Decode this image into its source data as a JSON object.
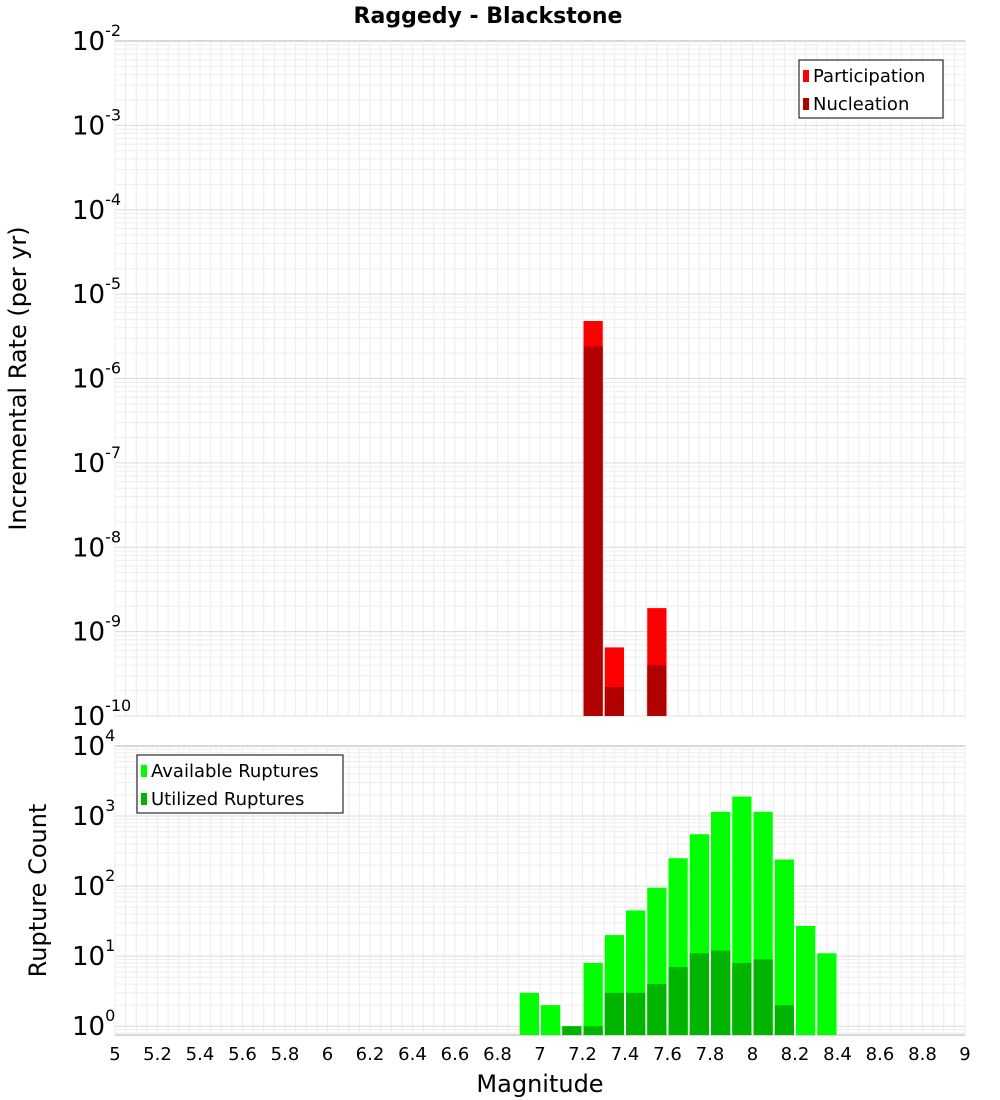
{
  "chart_data": [
    {
      "type": "bar",
      "title": "Raggedy - Blackstone",
      "xlabel": "",
      "ylabel": "Incremental Rate (per yr)",
      "yscale": "log",
      "ylim": [
        1e-10,
        0.01
      ],
      "xlim": [
        5,
        9
      ],
      "bar_width": 0.1,
      "grid": true,
      "legend_position": "top-right",
      "y_ticks": [
        {
          "base": "10",
          "exp": "-10",
          "value": 1e-10
        },
        {
          "base": "10",
          "exp": "-9",
          "value": 1e-09
        },
        {
          "base": "10",
          "exp": "-8",
          "value": 1e-08
        },
        {
          "base": "10",
          "exp": "-7",
          "value": 1e-07
        },
        {
          "base": "10",
          "exp": "-6",
          "value": 1e-06
        },
        {
          "base": "10",
          "exp": "-5",
          "value": 1e-05
        },
        {
          "base": "10",
          "exp": "-4",
          "value": 0.0001
        },
        {
          "base": "10",
          "exp": "-3",
          "value": 0.001
        },
        {
          "base": "10",
          "exp": "-2",
          "value": 0.01
        }
      ],
      "series": [
        {
          "name": "Participation",
          "color": "#ff0000",
          "points": [
            {
              "x": 7.25,
              "y": 4.8e-06
            },
            {
              "x": 7.35,
              "y": 6.5e-10
            },
            {
              "x": 7.55,
              "y": 1.9e-09
            }
          ]
        },
        {
          "name": "Nucleation",
          "color": "#b00000",
          "points": [
            {
              "x": 7.25,
              "y": 2.4e-06
            },
            {
              "x": 7.35,
              "y": 2.2e-10
            },
            {
              "x": 7.55,
              "y": 4e-10
            }
          ]
        }
      ]
    },
    {
      "type": "bar",
      "title": "",
      "xlabel": "Magnitude",
      "ylabel": "Rupture Count",
      "yscale": "log",
      "ylim": [
        0.75,
        10000
      ],
      "xlim": [
        5,
        9
      ],
      "bar_width": 0.1,
      "grid": true,
      "legend_position": "top-left",
      "x_ticks": [
        "5",
        "5.2",
        "5.4",
        "5.6",
        "5.8",
        "6",
        "6.2",
        "6.4",
        "6.6",
        "6.8",
        "7",
        "7.2",
        "7.4",
        "7.6",
        "7.8",
        "8",
        "8.2",
        "8.4",
        "8.6",
        "8.8",
        "9"
      ],
      "y_ticks": [
        {
          "base": "10",
          "exp": "0",
          "value": 1
        },
        {
          "base": "10",
          "exp": "1",
          "value": 10
        },
        {
          "base": "10",
          "exp": "2",
          "value": 100
        },
        {
          "base": "10",
          "exp": "3",
          "value": 1000
        },
        {
          "base": "10",
          "exp": "4",
          "value": 10000
        }
      ],
      "series": [
        {
          "name": "Available Ruptures",
          "color": "#00ff00",
          "points": [
            {
              "x": 6.95,
              "y": 3
            },
            {
              "x": 7.05,
              "y": 2
            },
            {
              "x": 7.15,
              "y": 1
            },
            {
              "x": 7.25,
              "y": 8
            },
            {
              "x": 7.35,
              "y": 20
            },
            {
              "x": 7.45,
              "y": 45
            },
            {
              "x": 7.55,
              "y": 95
            },
            {
              "x": 7.65,
              "y": 250
            },
            {
              "x": 7.75,
              "y": 550
            },
            {
              "x": 7.85,
              "y": 1150
            },
            {
              "x": 7.95,
              "y": 1900
            },
            {
              "x": 8.05,
              "y": 1150
            },
            {
              "x": 8.15,
              "y": 240
            },
            {
              "x": 8.25,
              "y": 27
            },
            {
              "x": 8.35,
              "y": 11
            }
          ]
        },
        {
          "name": "Utilized Ruptures",
          "color": "#00b400",
          "points": [
            {
              "x": 7.15,
              "y": 1
            },
            {
              "x": 7.25,
              "y": 1
            },
            {
              "x": 7.35,
              "y": 3
            },
            {
              "x": 7.45,
              "y": 3
            },
            {
              "x": 7.55,
              "y": 4
            },
            {
              "x": 7.65,
              "y": 7
            },
            {
              "x": 7.75,
              "y": 11
            },
            {
              "x": 7.85,
              "y": 12
            },
            {
              "x": 7.95,
              "y": 8
            },
            {
              "x": 8.05,
              "y": 9
            },
            {
              "x": 8.15,
              "y": 2
            }
          ]
        }
      ]
    }
  ]
}
